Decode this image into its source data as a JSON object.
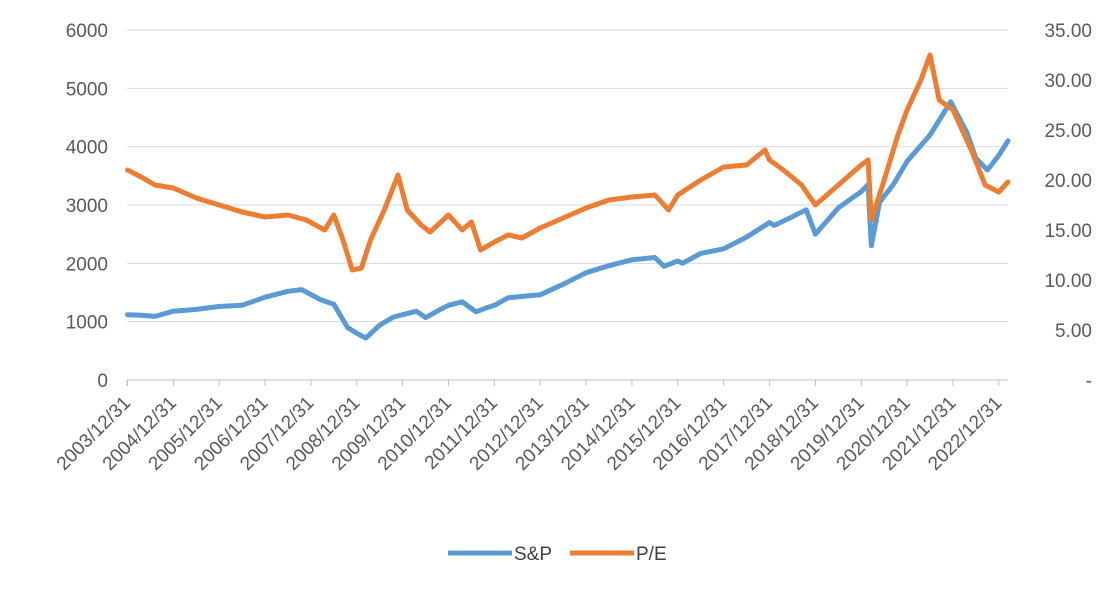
{
  "chart_data": {
    "type": "line",
    "title": "",
    "xlabel": "",
    "ylabel": "",
    "y2label": "",
    "x_ticks": [
      "2003/12/31",
      "2004/12/31",
      "2005/12/31",
      "2006/12/31",
      "2007/12/31",
      "2008/12/31",
      "2009/12/31",
      "2010/12/31",
      "2011/12/31",
      "2012/12/31",
      "2013/12/31",
      "2014/12/31",
      "2015/12/31",
      "2016/12/31",
      "2017/12/31",
      "2018/12/31",
      "2019/12/31",
      "2020/12/31",
      "2021/12/31",
      "2022/12/31"
    ],
    "x_range": [
      2003.99,
      2023.2
    ],
    "ylim": [
      0,
      6000
    ],
    "y_ticks": [
      "0",
      "1000",
      "2000",
      "3000",
      "4000",
      "5000",
      "6000"
    ],
    "y2lim": [
      0,
      35
    ],
    "y2_ticks": [
      "-",
      "5.00",
      "10.00",
      "15.00",
      "20.00",
      "25.00",
      "30.00",
      "35.00"
    ],
    "grid": true,
    "legend_position": "bottom",
    "series": [
      {
        "name": "S&P",
        "color": "#5B9BD5",
        "axis": "left",
        "x": [
          2004.0,
          2004.3,
          2004.6,
          2005.0,
          2005.5,
          2006.0,
          2006.5,
          2007.0,
          2007.5,
          2007.8,
          2008.2,
          2008.5,
          2008.8,
          2009.0,
          2009.2,
          2009.5,
          2009.8,
          2010.0,
          2010.3,
          2010.5,
          2010.8,
          2011.0,
          2011.3,
          2011.6,
          2011.8,
          2012.0,
          2012.3,
          2012.7,
          2013.0,
          2013.5,
          2014.0,
          2014.5,
          2015.0,
          2015.5,
          2015.7,
          2016.0,
          2016.1,
          2016.5,
          2017.0,
          2017.5,
          2018.0,
          2018.1,
          2018.5,
          2018.8,
          2019.0,
          2019.5,
          2020.0,
          2020.15,
          2020.22,
          2020.4,
          2020.7,
          2021.0,
          2021.5,
          2021.95,
          2022.3,
          2022.5,
          2022.75,
          2023.0,
          2023.2
        ],
        "values": [
          1120,
          1110,
          1090,
          1180,
          1210,
          1260,
          1280,
          1420,
          1520,
          1550,
          1380,
          1300,
          900,
          800,
          720,
          940,
          1080,
          1120,
          1180,
          1070,
          1200,
          1280,
          1340,
          1170,
          1230,
          1280,
          1410,
          1440,
          1460,
          1640,
          1840,
          1960,
          2060,
          2100,
          1950,
          2040,
          2000,
          2170,
          2250,
          2450,
          2700,
          2650,
          2800,
          2920,
          2500,
          2950,
          3230,
          3350,
          2300,
          3050,
          3350,
          3750,
          4200,
          4770,
          4250,
          3800,
          3600,
          3850,
          4100
        ]
      },
      {
        "name": "P/E",
        "color": "#ED7D31",
        "axis": "right",
        "x": [
          2004.0,
          2004.3,
          2004.6,
          2005.0,
          2005.5,
          2006.0,
          2006.5,
          2007.0,
          2007.5,
          2007.9,
          2008.3,
          2008.5,
          2008.7,
          2008.9,
          2009.1,
          2009.3,
          2009.6,
          2009.9,
          2010.1,
          2010.4,
          2010.6,
          2011.0,
          2011.3,
          2011.5,
          2011.7,
          2012.0,
          2012.3,
          2012.6,
          2013.0,
          2013.5,
          2014.0,
          2014.5,
          2015.0,
          2015.5,
          2015.8,
          2016.0,
          2016.5,
          2017.0,
          2017.5,
          2017.9,
          2018.0,
          2018.3,
          2018.7,
          2019.0,
          2019.5,
          2020.0,
          2020.15,
          2020.22,
          2020.5,
          2020.8,
          2021.0,
          2021.3,
          2021.5,
          2021.7,
          2022.0,
          2022.4,
          2022.7,
          2023.0,
          2023.2
        ],
        "values": [
          21.0,
          20.3,
          19.5,
          19.2,
          18.2,
          17.5,
          16.8,
          16.3,
          16.5,
          16.0,
          15.0,
          16.5,
          14.0,
          11.0,
          11.2,
          14.0,
          17.0,
          20.5,
          17.0,
          15.5,
          14.8,
          16.5,
          15.0,
          15.8,
          13.0,
          13.8,
          14.5,
          14.2,
          15.2,
          16.2,
          17.2,
          18.0,
          18.3,
          18.5,
          17.0,
          18.5,
          20.0,
          21.3,
          21.5,
          23.0,
          22.0,
          21.0,
          19.5,
          17.5,
          19.5,
          21.5,
          22.0,
          16.0,
          20.0,
          24.5,
          27.0,
          30.0,
          32.5,
          28.0,
          27.0,
          23.0,
          19.5,
          18.8,
          19.8
        ]
      }
    ]
  }
}
